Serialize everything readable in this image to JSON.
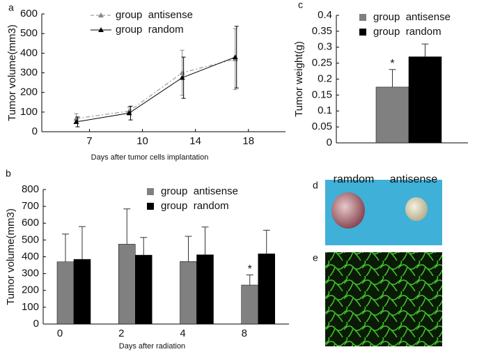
{
  "chart_data": [
    {
      "type": "line",
      "panel_label": "a",
      "ylabel": "Tumor volume(mm3)",
      "xlabel": "Days after tumor cells implantation",
      "x": [
        0.75,
        1.75,
        2.75,
        3.75
      ],
      "xlim": [
        0.1,
        4.7
      ],
      "xticks": [
        {
          "value": 1,
          "label": "7"
        },
        {
          "value": 2,
          "label": "10"
        },
        {
          "value": 3,
          "label": "14"
        },
        {
          "value": 4,
          "label": "18"
        }
      ],
      "ylim": [
        0,
        600
      ],
      "yticks": [
        0,
        100,
        200,
        300,
        400,
        500,
        600
      ],
      "series": [
        {
          "name": "group  antisense",
          "color": "#888888",
          "values": [
            67,
            105,
            300,
            370
          ],
          "errors": [
            25,
            20,
            115,
            155
          ]
        },
        {
          "name": "group  random",
          "color": "#000000",
          "values": [
            50,
            95,
            275,
            380
          ],
          "errors": [
            25,
            35,
            105,
            157
          ]
        }
      ]
    },
    {
      "type": "bar",
      "panel_label": "b",
      "ylabel": "Tumor volume(mm3)",
      "xlabel": "Days after radiation",
      "categories": [
        "0",
        "2",
        "4",
        "8"
      ],
      "ylim": [
        0,
        800
      ],
      "yticks": [
        0,
        100,
        200,
        300,
        400,
        500,
        600,
        700,
        800
      ],
      "annotation": "*",
      "series": [
        {
          "name": "group  antisense",
          "color": "#808080",
          "values": [
            370,
            475,
            372,
            232
          ],
          "errors": [
            165,
            210,
            150,
            60
          ]
        },
        {
          "name": "group  random",
          "color": "#000000",
          "values": [
            385,
            410,
            412,
            418
          ],
          "errors": [
            195,
            105,
            165,
            140
          ]
        }
      ]
    },
    {
      "type": "bar",
      "panel_label": "c",
      "ylabel": "Tumor weight(g)",
      "categories": [
        null
      ],
      "ylim": [
        0,
        0.4
      ],
      "yticks": [
        0,
        0.05,
        0.1,
        0.15,
        0.2,
        0.25,
        0.3,
        0.35,
        0.4
      ],
      "annotation": "*",
      "series": [
        {
          "name": "group  antisense",
          "color": "#808080",
          "values": [
            0.175
          ],
          "errors": [
            0.055
          ]
        },
        {
          "name": "group  random",
          "color": "#000000",
          "values": [
            0.27
          ],
          "errors": [
            0.04
          ]
        }
      ]
    }
  ],
  "images": [
    {
      "label": "d",
      "captions": [
        "ramdom",
        "antisense"
      ]
    },
    {
      "label": "e"
    }
  ]
}
